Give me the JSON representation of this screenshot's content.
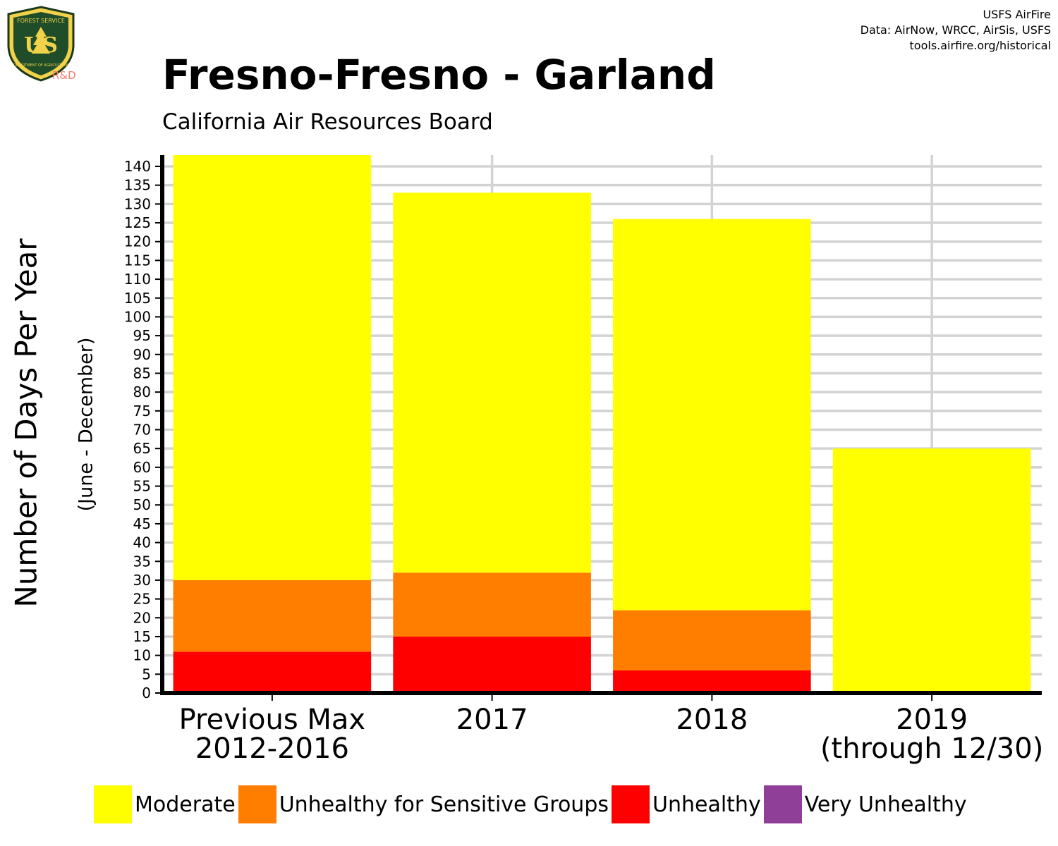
{
  "credits": {
    "line1": "USFS AirFire",
    "line2": "Data: AirNow, WRCC, AirSis, USFS",
    "line3": "tools.airfire.org/historical"
  },
  "logo": {
    "top_text": "FOREST SERVICE",
    "bottom_text": "DEPARTMENT OF AGRICULTURE",
    "letters": "US",
    "rd": "R&D"
  },
  "chart_data": {
    "type": "bar",
    "stacked": true,
    "title": "Fresno-Fresno - Garland",
    "subtitle": "California Air Resources Board",
    "ylabel": "Number of Days Per Year",
    "ylabel_sub": "(June - December)",
    "xlabel": "",
    "ylim": [
      0,
      143
    ],
    "ytick_step": 5,
    "yticks_max": 140,
    "grid": true,
    "legend_position": "bottom",
    "categories": [
      [
        "Previous Max",
        "2012-2016"
      ],
      [
        "2017"
      ],
      [
        "2018"
      ],
      [
        "2019",
        "(through 12/30)"
      ]
    ],
    "series": [
      {
        "name": "Unhealthy",
        "color": "#ff0000",
        "values": [
          11,
          15,
          6,
          0
        ]
      },
      {
        "name": "Unhealthy for Sensitive Groups",
        "color": "#ff7e00",
        "values": [
          19,
          17,
          16,
          0
        ]
      },
      {
        "name": "Moderate",
        "color": "#ffff00",
        "values": [
          113,
          101,
          104,
          65
        ]
      },
      {
        "name": "Very Unhealthy",
        "color": "#8f3f97",
        "values": [
          0,
          0,
          0,
          0
        ]
      }
    ],
    "legend": [
      {
        "name": "Moderate",
        "color": "#ffff00"
      },
      {
        "name": "Unhealthy for Sensitive Groups",
        "color": "#ff7e00"
      },
      {
        "name": "Unhealthy",
        "color": "#ff0000"
      },
      {
        "name": "Very Unhealthy",
        "color": "#8f3f97"
      }
    ]
  }
}
